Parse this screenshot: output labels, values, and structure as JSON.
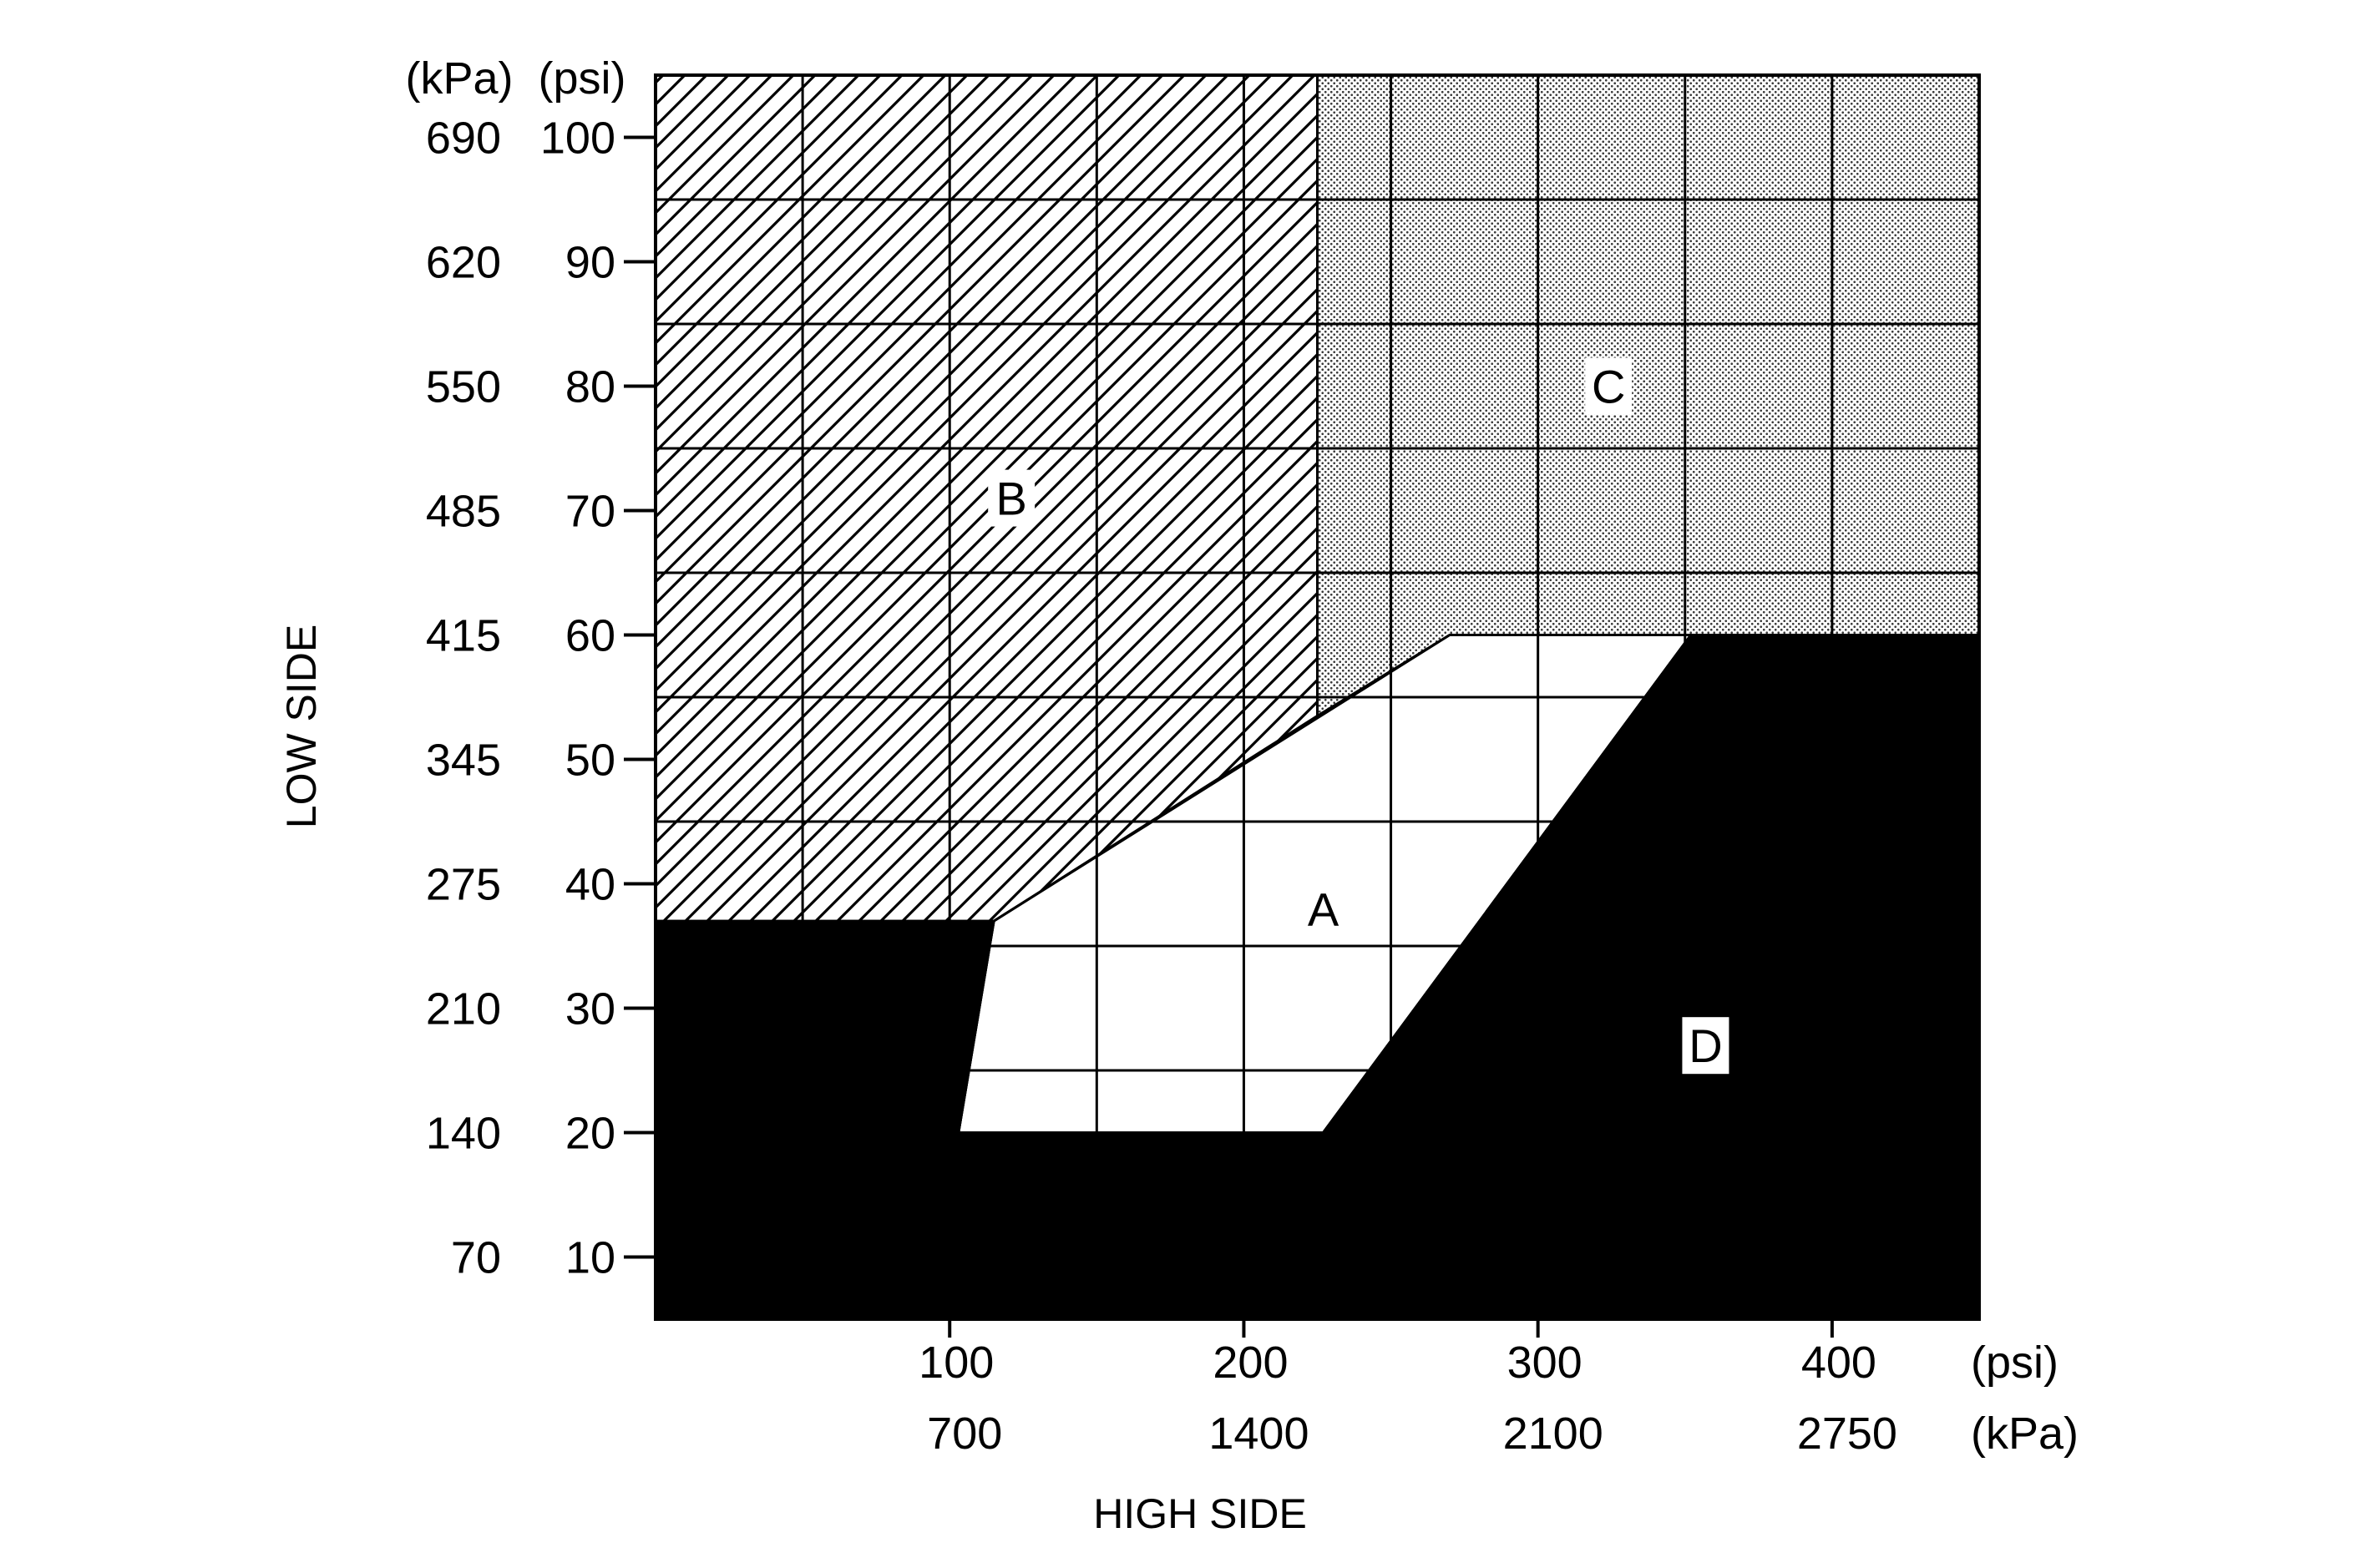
{
  "chart_data": {
    "type": "region-diagram",
    "xlabel": "HIGH SIDE",
    "ylabel": "LOW SIDE",
    "x_units": {
      "primary": "(psi)",
      "secondary": "(kPa)"
    },
    "y_units": {
      "primary": "(psi)",
      "secondary": "(kPa)"
    },
    "xlim": [
      0,
      450
    ],
    "ylim": [
      5,
      105
    ],
    "x_ticks": [
      {
        "psi": 100,
        "label": "100",
        "kpa_label": "700"
      },
      {
        "psi": 200,
        "label": "200",
        "kpa_label": "1400"
      },
      {
        "psi": 300,
        "label": "300",
        "kpa_label": "2100"
      },
      {
        "psi": 400,
        "label": "400",
        "kpa_label": "2750"
      }
    ],
    "y_ticks": [
      {
        "psi": 100,
        "label": "100",
        "kpa_label": "690"
      },
      {
        "psi": 90,
        "label": "90",
        "kpa_label": "620"
      },
      {
        "psi": 80,
        "label": "80",
        "kpa_label": "550"
      },
      {
        "psi": 70,
        "label": "70",
        "kpa_label": "485"
      },
      {
        "psi": 60,
        "label": "60",
        "kpa_label": "415"
      },
      {
        "psi": 50,
        "label": "50",
        "kpa_label": "345"
      },
      {
        "psi": 40,
        "label": "40",
        "kpa_label": "275"
      },
      {
        "psi": 30,
        "label": "30",
        "kpa_label": "210"
      },
      {
        "psi": 20,
        "label": "20",
        "kpa_label": "140"
      },
      {
        "psi": 10,
        "label": "10",
        "kpa_label": "70"
      }
    ],
    "grid_x": [
      0,
      50,
      100,
      150,
      200,
      250,
      300,
      350,
      400,
      450
    ],
    "grid_y": [
      5,
      15,
      20,
      25,
      35,
      45,
      55,
      65,
      75,
      85,
      95,
      105
    ],
    "regions": [
      {
        "name": "A",
        "fill": "white",
        "polygon": [
          [
            103,
            20
          ],
          [
            115,
            37
          ],
          [
            270,
            60
          ],
          [
            352,
            60
          ],
          [
            227,
            20
          ]
        ],
        "label_at": [
          227,
          38
        ]
      },
      {
        "name": "B",
        "fill": "diagonal-hatch",
        "polygon": [
          [
            0,
            105
          ],
          [
            225,
            105
          ],
          [
            225,
            53.5
          ],
          [
            115,
            37
          ],
          [
            0,
            37
          ]
        ],
        "label_at": [
          121,
          71
        ]
      },
      {
        "name": "C",
        "fill": "dotted",
        "polygon": [
          [
            225,
            105
          ],
          [
            450,
            105
          ],
          [
            450,
            60
          ],
          [
            270,
            60
          ],
          [
            225,
            53.5
          ]
        ],
        "label_at": [
          324,
          80
        ]
      },
      {
        "name": "D",
        "fill": "black",
        "polygon": [
          [
            0,
            5
          ],
          [
            450,
            5
          ],
          [
            450,
            60
          ],
          [
            352,
            60
          ],
          [
            227,
            20
          ],
          [
            103,
            20
          ],
          [
            115,
            37
          ],
          [
            0,
            37
          ]
        ],
        "label_at": [
          357,
          27
        ]
      }
    ],
    "colors": {
      "ink": "#000000",
      "background": "#ffffff",
      "dots": "#3a3a3a"
    }
  }
}
